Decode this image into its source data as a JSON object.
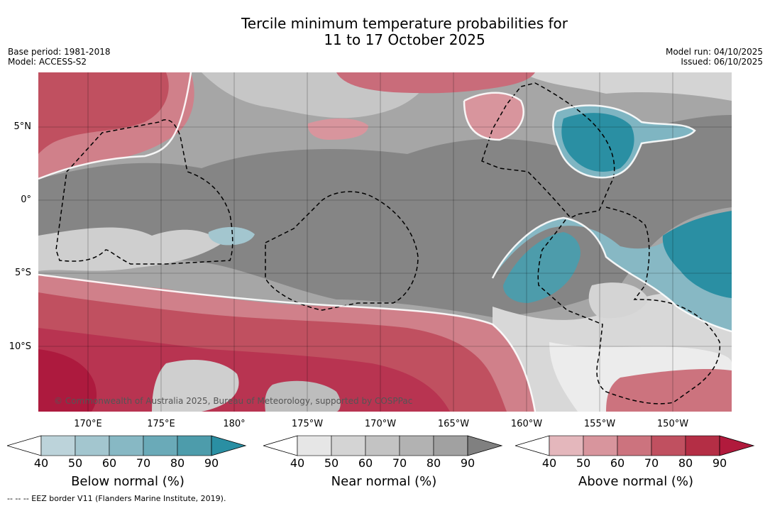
{
  "title": {
    "line1": "Tercile minimum temperature probabilities for",
    "line2": "11 to 17 October 2025"
  },
  "meta_left": {
    "base_period": "Base period: 1981-2018",
    "model": "Model: ACCESS-S2"
  },
  "meta_right": {
    "model_run": "Model run: 04/10/2025",
    "issued": "Issued: 06/10/2025"
  },
  "lat_ticks": [
    "5°N",
    "0°",
    "5°S",
    "10°S"
  ],
  "lon_ticks": [
    "170°E",
    "175°E",
    "180°",
    "175°W",
    "170°W",
    "165°W",
    "160°W",
    "155°W",
    "150°W"
  ],
  "credit": "© Commonwealth of Australia 2025, Bureau of Meteorology, supported by COSPPac",
  "colorbars": [
    {
      "title": "Below normal (%)",
      "labels": [
        "40",
        "50",
        "60",
        "70",
        "80",
        "90"
      ],
      "colors": [
        "#ffffff",
        "#bcd3da",
        "#a3c6cf",
        "#87b8c4",
        "#6aaab8",
        "#4d9cab",
        "#2a8fa3"
      ]
    },
    {
      "title": "Near normal (%)",
      "labels": [
        "40",
        "50",
        "60",
        "70",
        "80",
        "90"
      ],
      "colors": [
        "#ffffff",
        "#e6e6e6",
        "#d4d4d4",
        "#c3c3c3",
        "#b2b2b2",
        "#a1a1a1",
        "#808080"
      ]
    },
    {
      "title": "Above normal (%)",
      "labels": [
        "40",
        "50",
        "60",
        "70",
        "80",
        "90"
      ],
      "colors": [
        "#ffffff",
        "#e4b7bc",
        "#d8959d",
        "#cc737e",
        "#c05060",
        "#b42e45",
        "#b11a3c"
      ]
    }
  ],
  "footnote": "--  --  -- EEZ border V11 (Flanders Marine Institute, 2019)."
}
